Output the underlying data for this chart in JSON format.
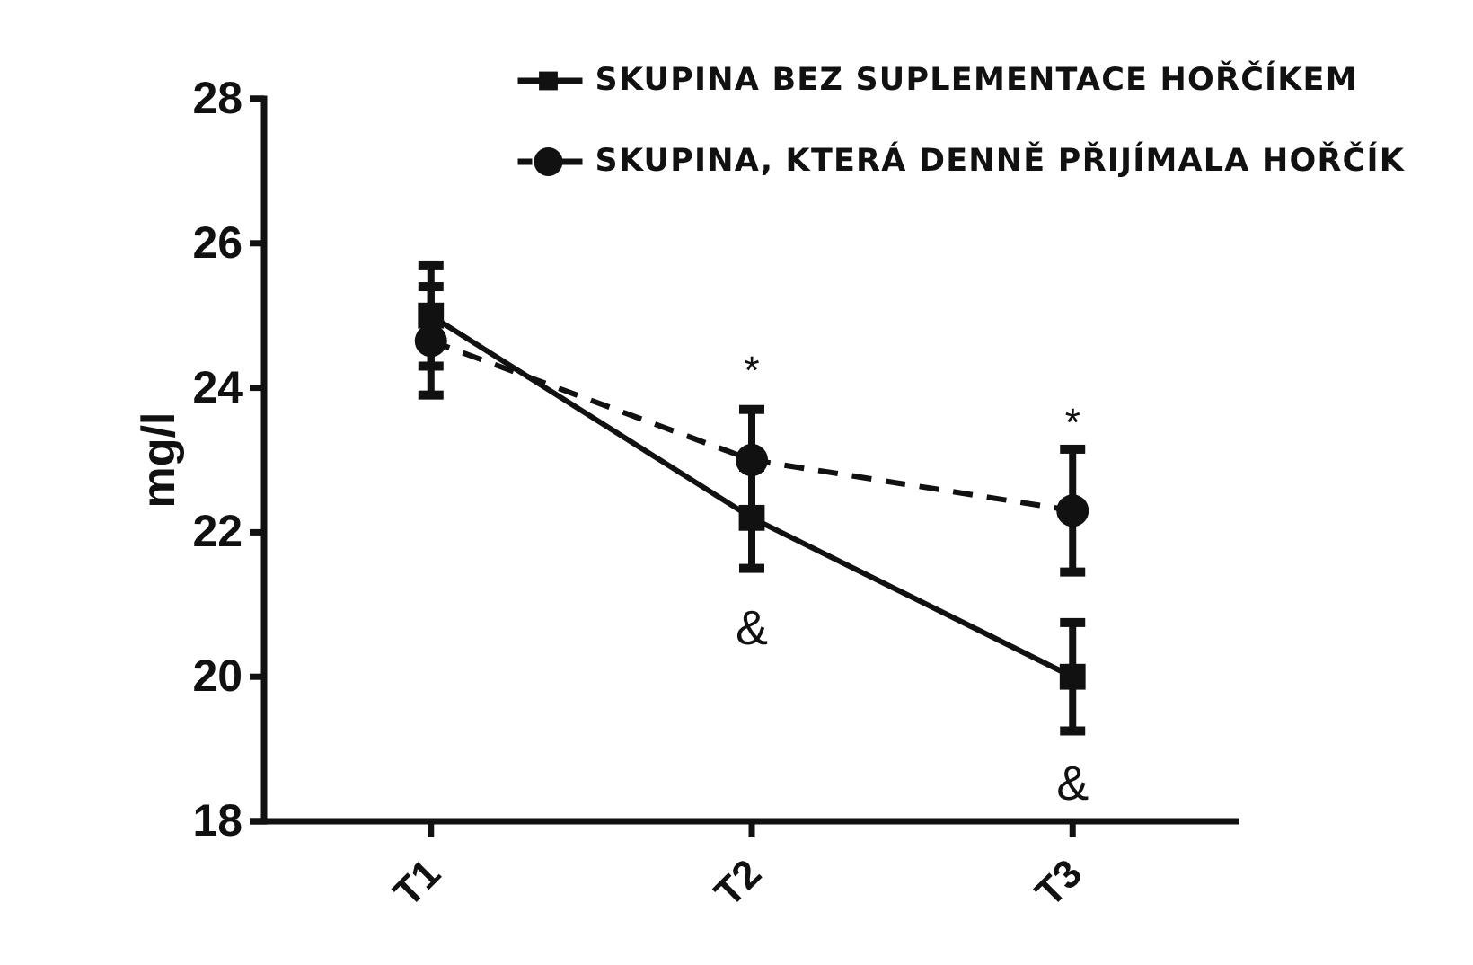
{
  "chart_data": {
    "type": "line",
    "categories": [
      "T1",
      "T2",
      "T3"
    ],
    "ylabel": "mg/l",
    "ylim": [
      18,
      28
    ],
    "yticks": [
      18,
      20,
      22,
      24,
      26,
      28
    ],
    "series": [
      {
        "name": "SKUPINA BEZ SUPLEMENTACE HOŘČÍKEM",
        "color": "#111111",
        "values": [
          25.0,
          22.2,
          20.0
        ],
        "errors": [
          0.7,
          0.7,
          0.75
        ],
        "marker": "square",
        "line_style": "solid"
      },
      {
        "name": "SKUPINA, KTERÁ DENNĚ PŘIJÍMALA HOŘČÍK",
        "color": "#111111",
        "values": [
          24.65,
          23.0,
          22.3
        ],
        "errors": [
          0.75,
          0.7,
          0.85
        ],
        "marker": "circle",
        "line_style": "dashed"
      }
    ],
    "annotations": [
      "*",
      "*",
      "&",
      "&"
    ],
    "grid": false,
    "legend": "top right"
  }
}
